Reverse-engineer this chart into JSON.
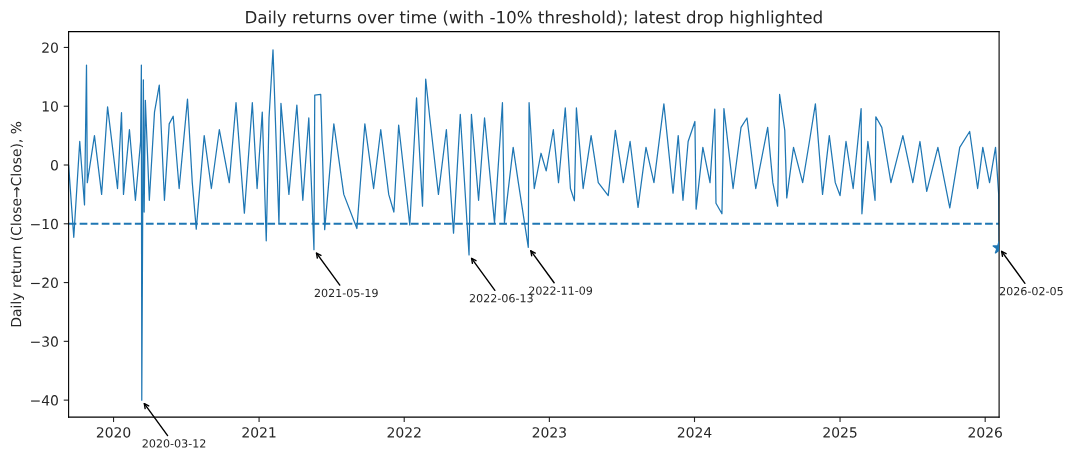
{
  "chart_data": {
    "type": "line",
    "title": "Daily returns over time (with -10% threshold); latest drop highlighted",
    "ylabel": "Daily return (Close→Close), %",
    "xlim": [
      "2019-09-10",
      "2026-02-05"
    ],
    "xticks": [
      {
        "value": "2020-01-01",
        "label": "2020"
      },
      {
        "value": "2021-01-01",
        "label": "2021"
      },
      {
        "value": "2022-01-01",
        "label": "2022"
      },
      {
        "value": "2023-01-01",
        "label": "2023"
      },
      {
        "value": "2024-01-01",
        "label": "2024"
      },
      {
        "value": "2025-01-01",
        "label": "2025"
      },
      {
        "value": "2026-01-01",
        "label": "2026"
      }
    ],
    "ylim": [
      -42.9,
      22.7
    ],
    "yticks": [
      {
        "value": -40,
        "label": "−40"
      },
      {
        "value": -30,
        "label": "−30"
      },
      {
        "value": -20,
        "label": "−20"
      },
      {
        "value": -10,
        "label": "−10"
      },
      0,
      10,
      20
    ],
    "grid": false,
    "ref_lines": [
      {
        "axis": "y",
        "value": -10,
        "color": "#1f77b4",
        "line_style": "dashed"
      }
    ],
    "annotations": [
      {
        "text": "2020-03-12",
        "x": "2020-03-12",
        "y": -40
      },
      {
        "text": "2021-05-19",
        "x": "2021-05-19",
        "y": -14.4
      },
      {
        "text": "2022-06-13",
        "x": "2022-06-13",
        "y": -15.3
      },
      {
        "text": "2022-11-09",
        "x": "2022-11-09",
        "y": -14
      },
      {
        "text": "2026-02-05",
        "x": "2026-02-05",
        "y": -14.1
      }
    ],
    "series": [
      {
        "color": "#1f77b4",
        "marker": "none",
        "line_style": "solid",
        "x": [
          "2019-09-10",
          "2019-09-23",
          "2019-10-08",
          "2019-10-20",
          "2019-10-25",
          "2019-10-27",
          "2019-11-14",
          "2019-12-02",
          "2019-12-17",
          "2020-01-11",
          "2020-01-21",
          "2020-01-26",
          "2020-02-10",
          "2020-02-25",
          "2020-03-09",
          "2020-03-11",
          "2020-03-12",
          "2020-03-16",
          "2020-03-18",
          "2020-03-21",
          "2020-03-31",
          "2020-04-13",
          "2020-04-25",
          "2020-05-08",
          "2020-05-20",
          "2020-05-30",
          "2020-06-14",
          "2020-07-05",
          "2020-07-17",
          "2020-07-27",
          "2020-08-16",
          "2020-09-03",
          "2020-09-23",
          "2020-10-18",
          "2020-11-04",
          "2020-11-25",
          "2020-12-15",
          "2020-12-27",
          "2021-01-09",
          "2021-01-19",
          "2021-01-26",
          "2021-02-05",
          "2021-02-20",
          "2021-02-25",
          "2021-03-17",
          "2021-04-06",
          "2021-04-21",
          "2021-05-06",
          "2021-05-19",
          "2021-05-21",
          "2021-06-05",
          "2021-06-15",
          "2021-07-08",
          "2021-08-02",
          "2021-09-04",
          "2021-09-24",
          "2021-10-16",
          "2021-11-03",
          "2021-11-23",
          "2021-12-06",
          "2021-12-18",
          "2022-01-15",
          "2022-02-01",
          "2022-02-16",
          "2022-02-24",
          "2022-03-06",
          "2022-03-28",
          "2022-04-17",
          "2022-05-05",
          "2022-05-22",
          "2022-06-13",
          "2022-06-19",
          "2022-07-07",
          "2022-07-22",
          "2022-08-16",
          "2022-09-05",
          "2022-09-10",
          "2022-10-02",
          "2022-10-15",
          "2022-11-09",
          "2022-11-11",
          "2022-11-24",
          "2022-12-11",
          "2022-12-24",
          "2023-01-11",
          "2023-01-24",
          "2023-02-10",
          "2023-02-23",
          "2023-03-05",
          "2023-03-10",
          "2023-03-27",
          "2023-04-16",
          "2023-05-04",
          "2023-05-29",
          "2023-06-16",
          "2023-07-06",
          "2023-07-23",
          "2023-08-12",
          "2023-09-01",
          "2023-09-21",
          "2023-10-16",
          "2023-11-08",
          "2023-11-21",
          "2023-12-03",
          "2023-12-16",
          "2024-01-02",
          "2024-01-05",
          "2024-01-22",
          "2024-02-09",
          "2024-02-21",
          "2024-02-24",
          "2024-03-10",
          "2024-03-15",
          "2024-04-07",
          "2024-04-27",
          "2024-05-12",
          "2024-06-03",
          "2024-07-03",
          "2024-07-16",
          "2024-07-28",
          "2024-08-02",
          "2024-08-15",
          "2024-08-20",
          "2024-09-06",
          "2024-09-29",
          "2024-10-16",
          "2024-10-31",
          "2024-11-18",
          "2024-12-05",
          "2024-12-20",
          "2025-01-01",
          "2025-01-16",
          "2025-02-03",
          "2025-02-23",
          "2025-02-25",
          "2025-03-12",
          "2025-03-30",
          "2025-04-01",
          "2025-04-16",
          "2025-05-09",
          "2025-06-08",
          "2025-07-03",
          "2025-07-21",
          "2025-08-07",
          "2025-09-04",
          "2025-10-04",
          "2025-10-29",
          "2025-11-23",
          "2025-12-13",
          "2025-12-26",
          "2026-01-12",
          "2026-01-27",
          "2026-02-04",
          "2026-02-05"
        ],
        "values": [
          0,
          -12.3,
          4,
          -6.8,
          17,
          -3,
          5,
          -5,
          9.9,
          -4,
          8.9,
          -5,
          6,
          -6,
          4,
          17,
          -40,
          14.5,
          -8,
          11,
          -6,
          9,
          13.6,
          -6,
          7,
          8.3,
          -4,
          11.2,
          -3,
          -10.9,
          5,
          -4,
          6,
          -3,
          10.6,
          -8.2,
          10.6,
          -4,
          9,
          -12.9,
          8,
          19.6,
          -10,
          10.5,
          -5,
          10.2,
          -6,
          8,
          -14.4,
          11.9,
          12,
          -11,
          7,
          -5,
          -10.8,
          7,
          -4,
          6,
          -5,
          -8,
          6.8,
          -10.2,
          11.4,
          -7,
          14.6,
          8.2,
          -5,
          6,
          -11.6,
          8.6,
          -15.3,
          8.6,
          -6,
          8,
          -9.8,
          10.6,
          -9.8,
          3,
          -3,
          -14,
          10.6,
          -4,
          2,
          -1,
          6,
          -3,
          9.7,
          -4,
          -6.1,
          9.7,
          -4,
          5,
          -3,
          -5.2,
          5.9,
          -3,
          4,
          -7.2,
          3,
          -3,
          10.4,
          -4.8,
          5,
          -6,
          4,
          7.4,
          -7.5,
          3,
          -3,
          9.5,
          -6.5,
          -8.3,
          9.6,
          -4,
          6.4,
          8,
          -4,
          6.4,
          -3,
          -7,
          12,
          5.9,
          -5.6,
          3,
          -3,
          4,
          10.4,
          -5,
          5,
          -3,
          -5.2,
          4,
          -4,
          9.6,
          -8.3,
          4,
          -6,
          8.2,
          6.4,
          -3,
          5,
          -3,
          4,
          -4.5,
          3,
          -7.3,
          3,
          5.7,
          -4,
          3,
          -3,
          3,
          -5,
          -14.1
        ]
      },
      {
        "type": "scatter",
        "color": "#1f77b4",
        "marker": "star",
        "x": [
          "2026-02-05"
        ],
        "values": [
          -14.1
        ]
      }
    ]
  }
}
